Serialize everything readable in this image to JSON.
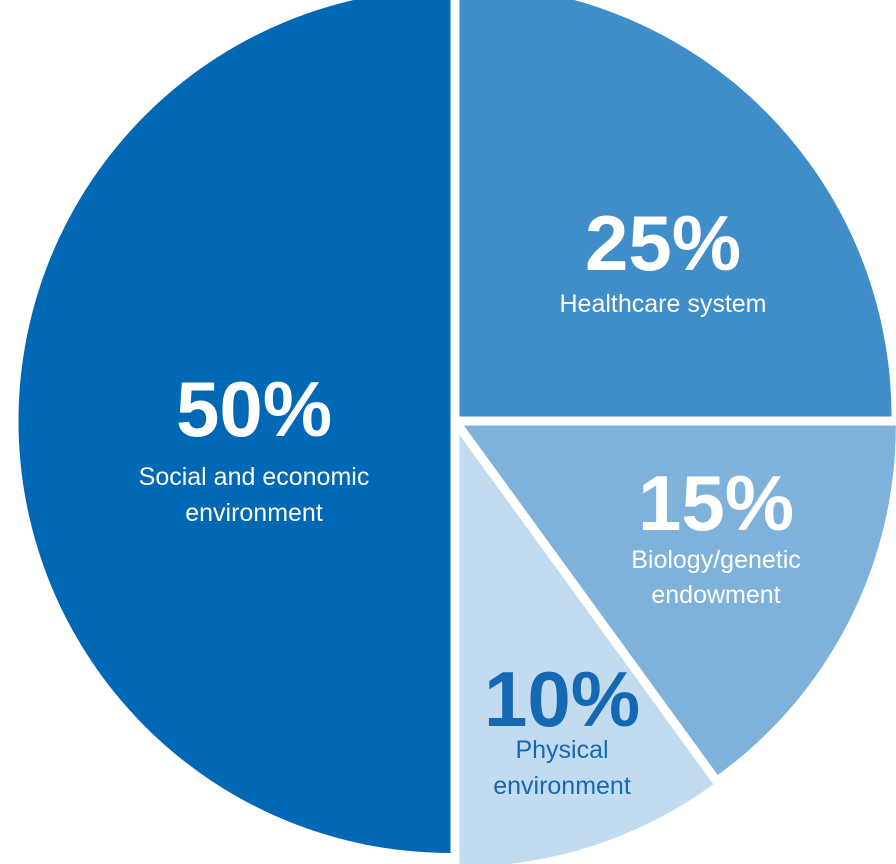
{
  "chart_data": {
    "type": "pie",
    "start_angle": "12 o'clock",
    "direction": "clockwise",
    "slices": [
      {
        "label_lines": [
          "Healthcare system"
        ],
        "value": 25,
        "value_label": "25%",
        "color": "#3f8dc9",
        "text_color": "#ffffff"
      },
      {
        "label_lines": [
          "Biology/genetic",
          "endowment"
        ],
        "value": 15,
        "value_label": "15%",
        "color": "#7fb2db",
        "text_color": "#ffffff"
      },
      {
        "label_lines": [
          "Physical",
          "environment"
        ],
        "value": 10,
        "value_label": "10%",
        "color": "#c3dbee",
        "text_color": "#1569b4"
      },
      {
        "label_lines": [
          "Social and economic",
          "environment"
        ],
        "value": 50,
        "value_label": "50%",
        "color": "#0068b4",
        "text_color": "#ffffff"
      }
    ]
  }
}
